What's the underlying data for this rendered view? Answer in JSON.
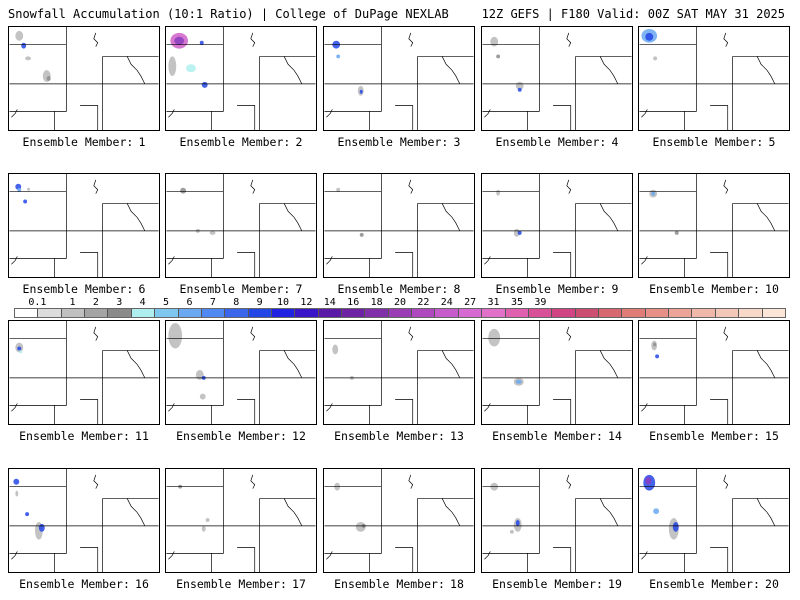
{
  "header": {
    "title": "Snowfall Accumulation (10:1 Ratio) | College of DuPage NEXLAB",
    "run_info": "12Z GEFS | F180 Valid: 00Z SAT MAY 31 2025"
  },
  "panel_caption_prefix": "Ensemble Member:",
  "members": [
    {
      "number": "1"
    },
    {
      "number": "2"
    },
    {
      "number": "3"
    },
    {
      "number": "4"
    },
    {
      "number": "5"
    },
    {
      "number": "6"
    },
    {
      "number": "7"
    },
    {
      "number": "8"
    },
    {
      "number": "9"
    },
    {
      "number": "10"
    },
    {
      "number": "11"
    },
    {
      "number": "12"
    },
    {
      "number": "13"
    },
    {
      "number": "14"
    },
    {
      "number": "15"
    },
    {
      "number": "16"
    },
    {
      "number": "17"
    },
    {
      "number": "18"
    },
    {
      "number": "19"
    },
    {
      "number": "20"
    }
  ],
  "colorbar": {
    "labels": [
      "0.1",
      "1",
      "2",
      "3",
      "4",
      "5",
      "6",
      "7",
      "8",
      "9",
      "10",
      "12",
      "14",
      "16",
      "18",
      "20",
      "22",
      "24",
      "27",
      "31",
      "35",
      "39"
    ],
    "colors": [
      "#ffffff",
      "#dcdcdc",
      "#c0c0c0",
      "#a4a4a4",
      "#8a8a8a",
      "#aeeeee",
      "#7ec8f0",
      "#6aa8f2",
      "#4f88f0",
      "#3a66ec",
      "#2346e6",
      "#1f22e0",
      "#3a14c8",
      "#5a1aa8",
      "#6e22a4",
      "#8230aa",
      "#9a3cb4",
      "#b048c0",
      "#c65ccc",
      "#d66ad2",
      "#e070c8",
      "#e060b0",
      "#d85098",
      "#d04484",
      "#cc4e70",
      "#d86870",
      "#e07c78",
      "#e69088",
      "#eca498",
      "#f0b8a8",
      "#f4c8b8",
      "#f8d8c8",
      "#fbe6d8"
    ]
  }
}
